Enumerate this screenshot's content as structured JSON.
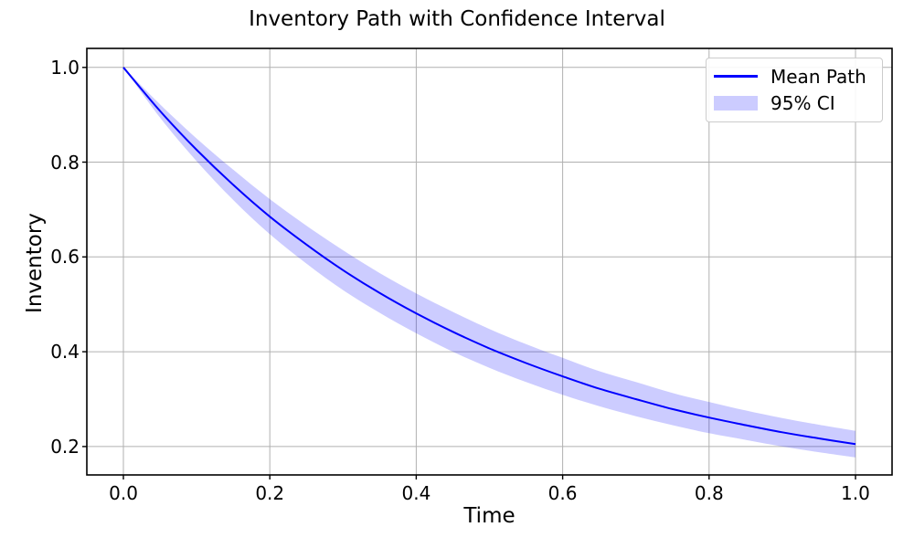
{
  "figure_title": "Inventory Path with Confidence Interval",
  "axes": {
    "xlabel": "Time",
    "ylabel": "Inventory"
  },
  "legend": {
    "items": [
      {
        "label": "Mean Path",
        "swatch": "line-swatch",
        "color": "#0000ff"
      },
      {
        "label": "95% CI",
        "swatch": "patch-swatch",
        "color": "rgba(0,0,255,0.2)"
      }
    ]
  },
  "chart_data": {
    "type": "line",
    "title": "Inventory Path with Confidence Interval",
    "xlabel": "Time",
    "ylabel": "Inventory",
    "grid": true,
    "legend_position": "upper right",
    "xlim": [
      -0.05,
      1.05
    ],
    "ylim": [
      0.14,
      1.04
    ],
    "x_ticks": [
      0.0,
      0.2,
      0.4,
      0.6,
      0.8,
      1.0
    ],
    "x_tick_labels": [
      "0.0",
      "0.2",
      "0.4",
      "0.6",
      "0.8",
      "1.0"
    ],
    "y_ticks": [
      0.2,
      0.4,
      0.6,
      0.8,
      1.0
    ],
    "y_tick_labels": [
      "0.2",
      "0.4",
      "0.6",
      "0.8",
      "1.0"
    ],
    "x": [
      0.0,
      0.05,
      0.1,
      0.15,
      0.2,
      0.25,
      0.3,
      0.35,
      0.4,
      0.45,
      0.5,
      0.55,
      0.6,
      0.65,
      0.7,
      0.75,
      0.8,
      0.85,
      0.9,
      0.95,
      1.0
    ],
    "series": [
      {
        "name": "Mean Path",
        "kind": "line",
        "color": "#0000ff",
        "values": [
          1.0,
          0.908,
          0.826,
          0.752,
          0.685,
          0.626,
          0.572,
          0.524,
          0.481,
          0.442,
          0.407,
          0.376,
          0.348,
          0.322,
          0.3,
          0.279,
          0.261,
          0.245,
          0.23,
          0.217,
          0.205
        ]
      },
      {
        "name": "95% CI",
        "kind": "band",
        "color": "rgba(0,0,255,0.2)",
        "lower": [
          1.0,
          0.894,
          0.802,
          0.72,
          0.648,
          0.586,
          0.53,
          0.482,
          0.439,
          0.4,
          0.366,
          0.336,
          0.309,
          0.285,
          0.264,
          0.245,
          0.228,
          0.214,
          0.2,
          0.188,
          0.177
        ],
        "upper": [
          1.0,
          0.922,
          0.85,
          0.784,
          0.722,
          0.666,
          0.614,
          0.566,
          0.523,
          0.484,
          0.448,
          0.416,
          0.387,
          0.359,
          0.336,
          0.313,
          0.294,
          0.276,
          0.26,
          0.246,
          0.233
        ]
      }
    ],
    "style": {
      "line_color": "#0000ff",
      "band_color": "rgba(0,0,255,0.2)",
      "grid_color": "#b0b0b0",
      "spine_color": "#000000"
    }
  }
}
